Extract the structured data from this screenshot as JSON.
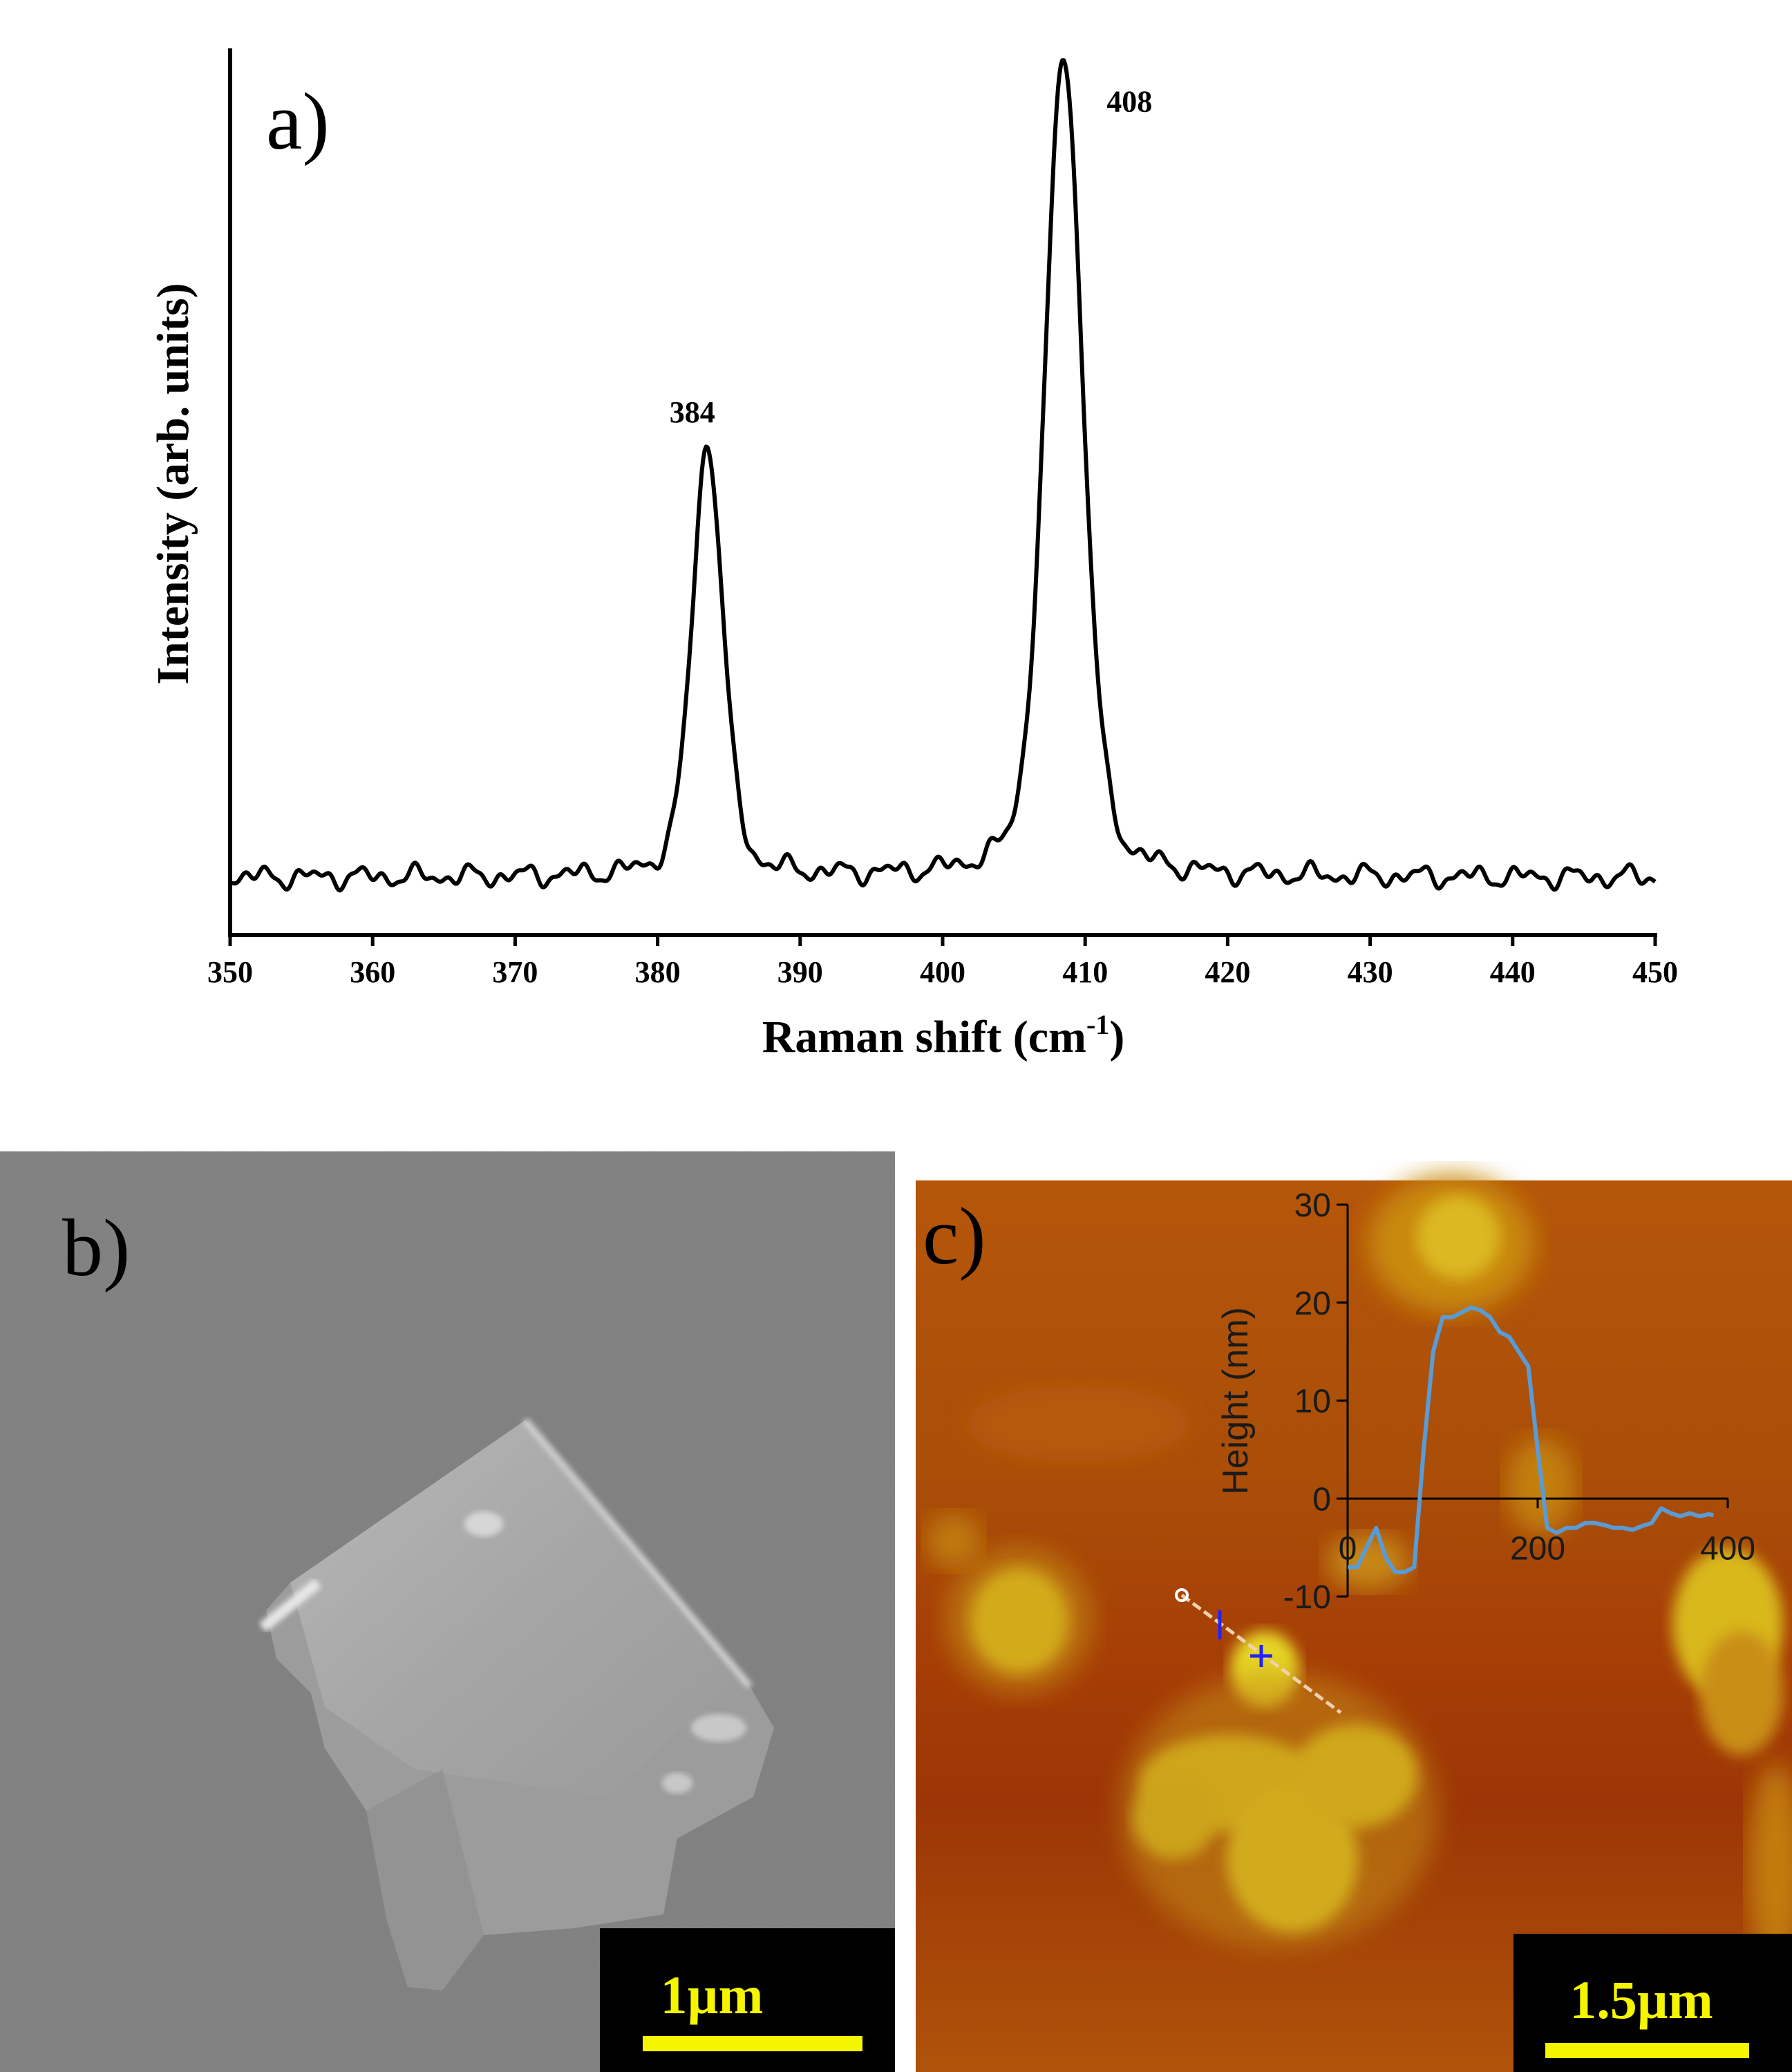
{
  "panels": {
    "a": {
      "label": "a)"
    },
    "b": {
      "label": "b)",
      "scale_bar": "1µm"
    },
    "c": {
      "label": "c)",
      "scale_bar": "1.5µm"
    }
  },
  "chart_data": [
    {
      "panel": "a",
      "type": "line",
      "title": "",
      "xlabel": "Raman shift (cm",
      "xlabel_sup": "-1",
      "xlabel_tail": ")",
      "ylabel": "Intensity (arb. units)",
      "xlim": [
        350,
        450
      ],
      "ylim": [
        0,
        100
      ],
      "x_ticks": [
        350,
        360,
        370,
        380,
        390,
        400,
        410,
        420,
        430,
        440,
        450
      ],
      "y_ticks_shown": false,
      "grid": false,
      "peaks": [
        {
          "x": 383.5,
          "height": 49,
          "width": 1.3,
          "label": "384"
        },
        {
          "x": 408.5,
          "height": 93,
          "width": 1.6,
          "label": "408"
        }
      ],
      "baseline": 6.5,
      "color": "#000000"
    },
    {
      "panel": "c-inset",
      "type": "line",
      "title": "",
      "xlabel": "",
      "ylabel": "Height (nm)",
      "xlim": [
        0,
        400
      ],
      "ylim": [
        -10,
        30
      ],
      "x_ticks": [
        0,
        200,
        400
      ],
      "y_ticks": [
        -10,
        0,
        10,
        20,
        30
      ],
      "grid": false,
      "color": "#5b9bd5",
      "x": [
        0,
        10,
        20,
        30,
        40,
        50,
        60,
        70,
        80,
        90,
        100,
        110,
        120,
        130,
        140,
        150,
        160,
        170,
        180,
        190,
        200,
        210,
        220,
        230,
        240,
        250,
        260,
        270,
        280,
        290,
        300,
        310,
        320,
        330,
        340,
        350,
        360,
        370,
        380,
        385
      ],
      "y": [
        -7,
        -7,
        -5,
        -3,
        -6,
        -7.5,
        -7.5,
        -7,
        5,
        15,
        18.5,
        18.5,
        19,
        19.5,
        19.2,
        18.5,
        17,
        16.5,
        15,
        13.5,
        5,
        -3,
        -3.5,
        -3,
        -3,
        -2.5,
        -2.5,
        -2.7,
        -3,
        -3,
        -3.2,
        -2.8,
        -2.5,
        -1,
        -1.5,
        -1.8,
        -1.5,
        -1.8,
        -1.6,
        -1.7
      ]
    }
  ]
}
